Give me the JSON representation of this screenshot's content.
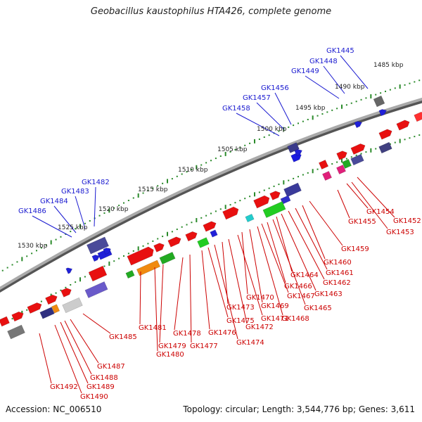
{
  "title": "Geobacillus kaustophilus HTA426, complete genome",
  "footer": {
    "accession": "Accession: NC_006510",
    "topology": "Topology: circular; Length: 3,544,776 bp; Genes: 3,611"
  },
  "colors": {
    "backbone": "#8a8a8a",
    "forward_gene": "#e81010",
    "blue_label": "#1a1ad0",
    "red_label": "#cc0000",
    "tick_dot": "#2a8a2a"
  },
  "kbp_labels": [
    "1485 kbp",
    "1490 kbp",
    "1495 kbp",
    "1500 kbp",
    "1505 kbp",
    "1510 kbp",
    "1515 kbp",
    "1520 kbp",
    "1525 kbp",
    "1530 kbp"
  ],
  "top_gene_labels": [
    "GK1445",
    "GK1448",
    "GK1449",
    "GK1456",
    "GK1457",
    "GK1458",
    "GK1482",
    "GK1483",
    "GK1484",
    "GK1486"
  ],
  "bottom_gene_labels": [
    "GK1452",
    "GK1453",
    "GK1454",
    "GK1455",
    "GK1459",
    "GK1460",
    "GK1461",
    "GK1462",
    "GK1463",
    "GK1464",
    "GK1465",
    "GK1466",
    "GK1467",
    "GK1468",
    "GK1469",
    "GK1470",
    "GK1471",
    "GK1472",
    "GK1473",
    "GK1474",
    "GK1475",
    "GK1476",
    "GK1477",
    "GK1478",
    "GK1479",
    "GK1480",
    "GK1481",
    "GK1485",
    "GK1487",
    "GK1488",
    "GK1489",
    "GK1490",
    "GK1492"
  ]
}
